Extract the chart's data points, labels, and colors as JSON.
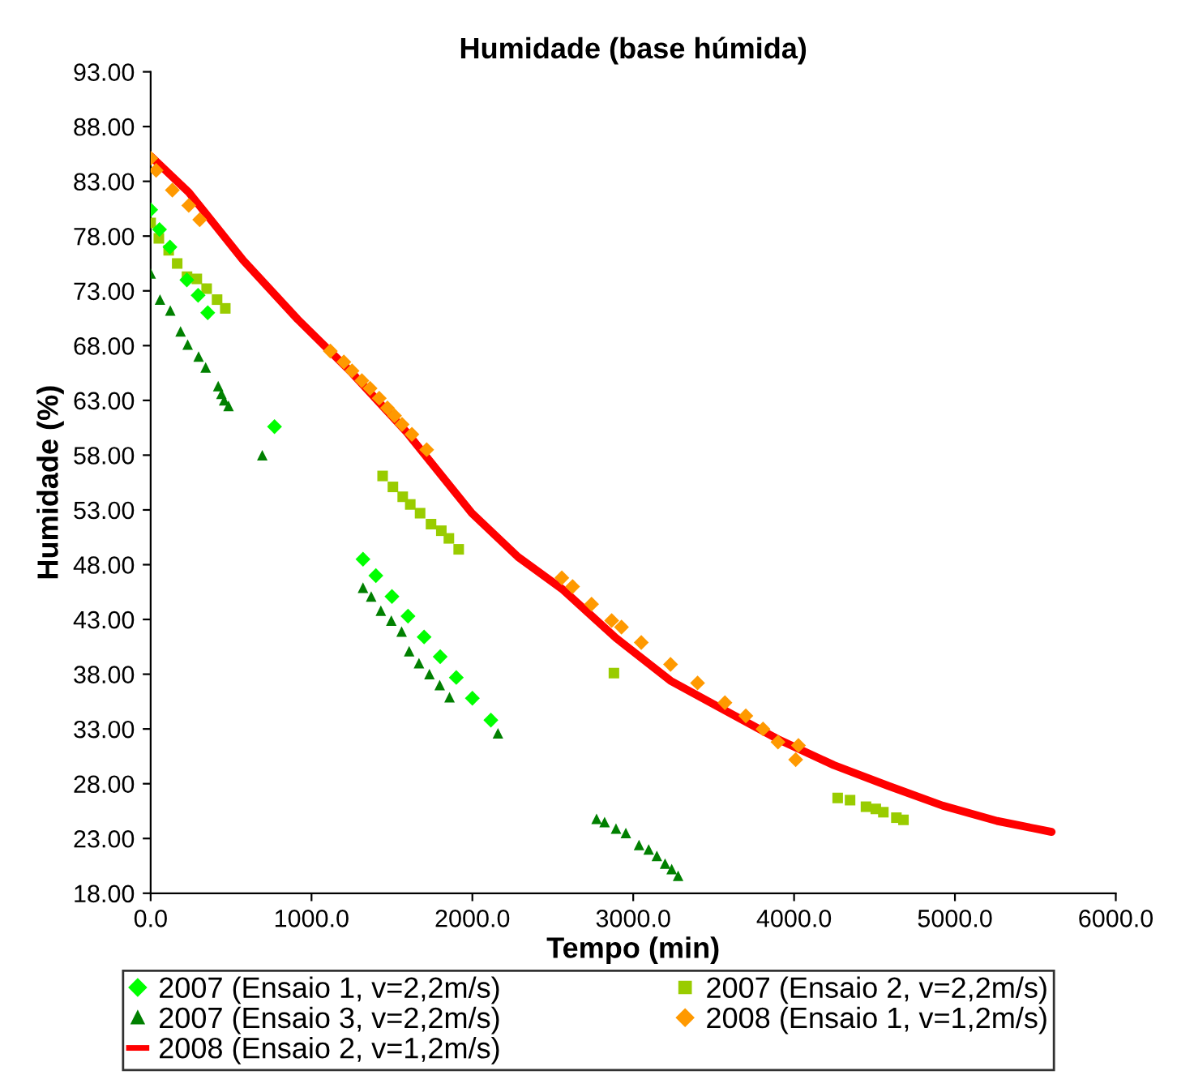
{
  "chart_data": {
    "type": "scatter",
    "title": "Humidade (base húmida)",
    "xlabel": "Tempo (min)",
    "ylabel": "Humidade (%)",
    "xlim": [
      0,
      6000
    ],
    "xticks": [
      {
        "value": 0,
        "label": "0.0"
      },
      {
        "value": 1000,
        "label": "1000.0"
      },
      {
        "value": 2000,
        "label": "2000.0"
      },
      {
        "value": 3000,
        "label": "3000.0"
      },
      {
        "value": 4000,
        "label": "4000.0"
      },
      {
        "value": 5000,
        "label": "5000.0"
      },
      {
        "value": 6000,
        "label": "6000.0"
      }
    ],
    "ylim": [
      18,
      93
    ],
    "yticks": [
      {
        "value": 18,
        "label": "18.00"
      },
      {
        "value": 23,
        "label": "23.00"
      },
      {
        "value": 28,
        "label": "28.00"
      },
      {
        "value": 33,
        "label": "33.00"
      },
      {
        "value": 38,
        "label": "38.00"
      },
      {
        "value": 43,
        "label": "43.00"
      },
      {
        "value": 48,
        "label": "48.00"
      },
      {
        "value": 53,
        "label": "53.00"
      },
      {
        "value": 58,
        "label": "58.00"
      },
      {
        "value": 63,
        "label": "63.00"
      },
      {
        "value": 68,
        "label": "68.00"
      },
      {
        "value": 73,
        "label": "73.00"
      },
      {
        "value": 78,
        "label": "78.00"
      },
      {
        "value": 83,
        "label": "83.00"
      },
      {
        "value": 88,
        "label": "88.00"
      },
      {
        "value": 93,
        "label": "93.00"
      }
    ],
    "grid": false,
    "legend": "bottom",
    "series": [
      {
        "name": "2007 (Ensaio 1, v=2,2m/s)",
        "marker": "diamond",
        "color": "#00ff00",
        "x": [
          0,
          55,
          120,
          225,
          295,
          355,
          770,
          1320,
          1400,
          1500,
          1600,
          1700,
          1800,
          1900,
          2000,
          2115
        ],
        "values": [
          80.4,
          78.6,
          77.0,
          74.0,
          72.6,
          71.0,
          60.6,
          48.5,
          47.0,
          45.1,
          43.3,
          41.4,
          39.6,
          37.7,
          35.8,
          33.8
        ]
      },
      {
        "name": "2007 (Ensaio 2, v=2,2m/s)",
        "marker": "square",
        "color": "#99cc00",
        "x": [
          0,
          51,
          112,
          165,
          226,
          287,
          348,
          413,
          464,
          1442,
          1506,
          1567,
          1614,
          1675,
          1743,
          1807,
          1854,
          1915,
          2880,
          4271,
          4348,
          4447,
          4508,
          4555,
          4636,
          4680
        ],
        "values": [
          79.2,
          77.8,
          76.7,
          75.5,
          74.3,
          74.1,
          73.2,
          72.2,
          71.4,
          56.1,
          55.1,
          54.2,
          53.5,
          52.7,
          51.7,
          51.1,
          50.4,
          49.4,
          38.1,
          26.7,
          26.5,
          25.9,
          25.7,
          25.4,
          24.9,
          24.7
        ]
      },
      {
        "name": "2007 (Ensaio 3, v=2,2m/s)",
        "marker": "triangle",
        "color": "#008000",
        "x": [
          0,
          58,
          122,
          186,
          230,
          298,
          342,
          420,
          440,
          457,
          484,
          694,
          1320,
          1371,
          1431,
          1496,
          1560,
          1607,
          1668,
          1733,
          1797,
          1858,
          2159,
          2772,
          2822,
          2893,
          2954,
          3036,
          3096,
          3147,
          3198,
          3239,
          3279
        ],
        "values": [
          74.6,
          72.2,
          71.2,
          69.3,
          68.1,
          67.0,
          66.0,
          64.3,
          63.6,
          63.0,
          62.5,
          58.0,
          45.9,
          45.1,
          43.8,
          42.9,
          41.9,
          40.1,
          39.0,
          38.0,
          37.0,
          35.9,
          32.6,
          24.8,
          24.5,
          23.9,
          23.5,
          22.4,
          22.0,
          21.4,
          20.7,
          20.2,
          19.6
        ]
      },
      {
        "name": "2008 (Ensaio 1, v=1,2m/s)",
        "marker": "diamond",
        "color": "#ff9900",
        "x": [
          0,
          34,
          135,
          237,
          305,
          1117,
          1201,
          1252,
          1313,
          1364,
          1421,
          1472,
          1516,
          1563,
          1624,
          1716,
          2556,
          2623,
          2741,
          2866,
          2927,
          3050,
          3232,
          3400,
          3570,
          3700,
          3807,
          3900,
          4010,
          4027
        ],
        "values": [
          85.1,
          84.0,
          82.2,
          80.8,
          79.5,
          67.5,
          66.5,
          65.7,
          64.8,
          64.1,
          63.2,
          62.3,
          61.6,
          60.8,
          59.9,
          58.5,
          46.8,
          46.0,
          44.4,
          42.9,
          42.3,
          40.9,
          38.9,
          37.2,
          35.4,
          34.2,
          33.0,
          31.8,
          30.2,
          31.5
        ]
      },
      {
        "name": "2008 (Ensaio 2, v=1,2m/s)",
        "type": "line",
        "marker": "none",
        "color": "#ff0000",
        "x": [
          0,
          237,
          575,
          914,
          1252,
          1591,
          1997,
          2284,
          2556,
          2893,
          3232,
          3570,
          3909,
          4247,
          4586,
          4924,
          5262,
          5601
        ],
        "values": [
          85.3,
          82.0,
          75.8,
          70.4,
          65.5,
          60.1,
          52.7,
          48.7,
          45.8,
          41.3,
          37.4,
          34.7,
          32.0,
          29.7,
          27.8,
          26.0,
          24.6,
          23.6
        ]
      }
    ]
  }
}
